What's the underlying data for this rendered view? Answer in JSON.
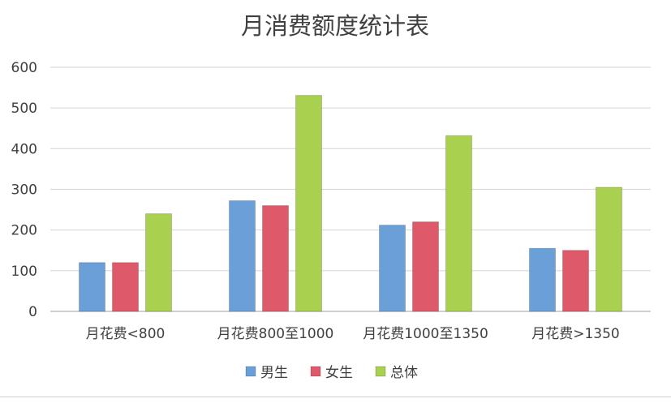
{
  "chart_data": {
    "type": "bar",
    "title": "月消费额度统计表",
    "xlabel": "",
    "ylabel": "",
    "categories": [
      "月花费<800",
      "月花费800至1000",
      "月花费1000至1350",
      "月花费>1350"
    ],
    "series": [
      {
        "name": "男生",
        "color": "#6a9fd8",
        "values": [
          120,
          272,
          212,
          155
        ]
      },
      {
        "name": "女生",
        "color": "#de5a6a",
        "values": [
          120,
          260,
          220,
          150
        ]
      },
      {
        "name": "总体",
        "color": "#a9d04f",
        "values": [
          240,
          531,
          432,
          305
        ]
      }
    ],
    "ylim": [
      0,
      600
    ],
    "yticks": [
      0,
      100,
      200,
      300,
      400,
      500,
      600
    ],
    "grid": true,
    "legend_position": "bottom"
  }
}
